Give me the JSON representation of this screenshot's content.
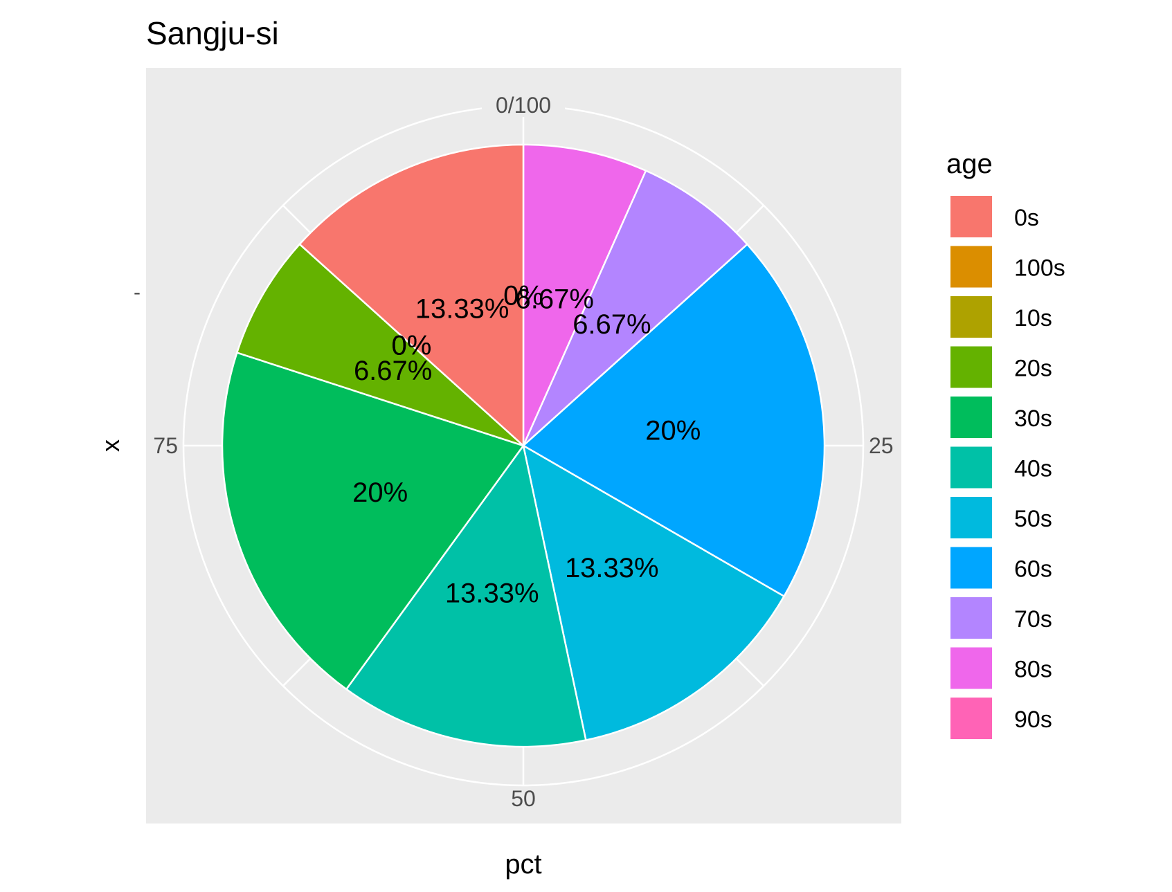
{
  "chart_data": {
    "type": "pie",
    "title": "Sangju-si",
    "xlabel": "pct",
    "ylabel": "x",
    "y_tick_label": "-",
    "angle_axis": {
      "ticks": [
        0,
        25,
        50,
        75
      ],
      "tick_labels": [
        "0/100",
        "25",
        "50",
        "75"
      ],
      "range": [
        0,
        100
      ]
    },
    "legend": {
      "title": "age",
      "position": "right"
    },
    "stack_order": [
      "90s",
      "80s",
      "70s",
      "60s",
      "50s",
      "40s",
      "30s",
      "20s",
      "10s",
      "100s",
      "0s"
    ],
    "slices": [
      {
        "label": "0s",
        "value": 13.33,
        "text": "13.33%",
        "color": "#F8766D"
      },
      {
        "label": "100s",
        "value": 0,
        "text": "0%",
        "color": "#DB8E00"
      },
      {
        "label": "10s",
        "value": 0,
        "text": "0%",
        "color": "#AEA200"
      },
      {
        "label": "20s",
        "value": 6.67,
        "text": "6.67%",
        "color": "#64B200"
      },
      {
        "label": "30s",
        "value": 20,
        "text": "20%",
        "color": "#00BD5C"
      },
      {
        "label": "40s",
        "value": 13.33,
        "text": "13.33%",
        "color": "#00C1A7"
      },
      {
        "label": "50s",
        "value": 13.33,
        "text": "13.33%",
        "color": "#00BADE"
      },
      {
        "label": "60s",
        "value": 20,
        "text": "20%",
        "color": "#00A6FF"
      },
      {
        "label": "70s",
        "value": 6.67,
        "text": "6.67%",
        "color": "#B385FF"
      },
      {
        "label": "80s",
        "value": 6.67,
        "text": "6.67%",
        "color": "#EF67EB"
      },
      {
        "label": "90s",
        "value": 0,
        "text": "0%",
        "color": "#FF63B6"
      }
    ],
    "grid": true,
    "panel_background": "#EBEBEB"
  }
}
